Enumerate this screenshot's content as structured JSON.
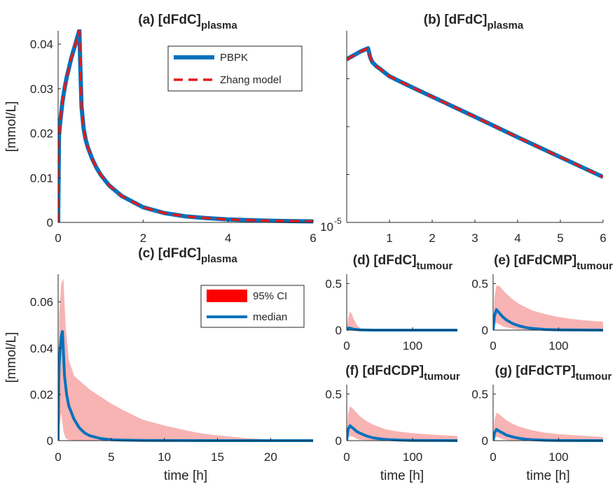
{
  "colors": {
    "pbpk": "#0072BD",
    "zhang": "#E31A1C",
    "ci_band": "#F8B3B3",
    "ci_legend": "#FF0000",
    "median": "#0072BD",
    "axes": "#262626"
  },
  "chart_data": [
    {
      "id": "a",
      "type": "line",
      "title": "(a) [dFdC]",
      "title_sub": "plasma",
      "ylabel": "[mmol/L]",
      "xlabel": "",
      "xlim": [
        0,
        6
      ],
      "ylim": [
        0,
        0.043
      ],
      "xticks": [
        0,
        2,
        4,
        6
      ],
      "yticks": [
        0,
        0.01,
        0.02,
        0.03,
        0.04
      ],
      "ytick_labels": [
        "0",
        "0.01",
        "0.02",
        "0.03",
        "0.04"
      ],
      "legend": {
        "position": "top-right",
        "entries": [
          "PBPK",
          "Zhang model"
        ]
      },
      "series": [
        {
          "name": "PBPK",
          "style": "solid",
          "x": [
            0,
            0.02,
            0.05,
            0.1,
            0.15,
            0.2,
            0.25,
            0.3,
            0.35,
            0.4,
            0.45,
            0.5,
            0.52,
            0.55,
            0.6,
            0.65,
            0.7,
            0.8,
            0.9,
            1.0,
            1.2,
            1.5,
            2.0,
            2.5,
            3.0,
            3.5,
            4.0,
            4.5,
            5.0,
            5.5,
            6.0
          ],
          "y": [
            0,
            0.0195,
            0.0225,
            0.027,
            0.03,
            0.0325,
            0.0345,
            0.0365,
            0.0382,
            0.0398,
            0.0415,
            0.0431,
            0.036,
            0.026,
            0.021,
            0.0185,
            0.0168,
            0.0143,
            0.0123,
            0.0107,
            0.0083,
            0.0059,
            0.0034,
            0.0021,
            0.00135,
            0.00095,
            0.00068,
            0.0005,
            0.00038,
            0.0003,
            0.00024
          ]
        },
        {
          "name": "Zhang model",
          "style": "dashed",
          "x": [
            0,
            0.02,
            0.05,
            0.1,
            0.15,
            0.2,
            0.25,
            0.3,
            0.35,
            0.4,
            0.45,
            0.5,
            0.52,
            0.55,
            0.6,
            0.65,
            0.7,
            0.8,
            0.9,
            1.0,
            1.2,
            1.5,
            2.0,
            2.5,
            3.0,
            3.5,
            4.0,
            4.5,
            5.0,
            5.5,
            6.0
          ],
          "y": [
            0,
            0.019,
            0.0225,
            0.027,
            0.03,
            0.0325,
            0.0345,
            0.0365,
            0.0382,
            0.0398,
            0.0415,
            0.043,
            0.036,
            0.026,
            0.021,
            0.0185,
            0.0168,
            0.0143,
            0.0123,
            0.0107,
            0.0083,
            0.0059,
            0.0034,
            0.0021,
            0.00135,
            0.00095,
            0.00068,
            0.0005,
            0.00038,
            0.0003,
            0.00024
          ]
        }
      ]
    },
    {
      "id": "b",
      "type": "line",
      "title": "(b) [dFdC]",
      "title_sub": "plasma",
      "yscale": "log",
      "xlim": [
        0,
        6
      ],
      "ylim": [
        1e-05,
        0.1
      ],
      "xticks": [
        1,
        2,
        3,
        4,
        5,
        6
      ],
      "ytick_labels": [
        "10"
      ],
      "ytick_exp": "-5",
      "series": [
        {
          "name": "PBPK",
          "style": "solid",
          "x": [
            0,
            0.1,
            0.2,
            0.3,
            0.4,
            0.5,
            0.52,
            0.55,
            0.6,
            0.7,
            0.8,
            1.0,
            1.5,
            2.0,
            3.0,
            4.0,
            5.0,
            6.0
          ],
          "y": [
            0.0255,
            0.0285,
            0.032,
            0.036,
            0.0395,
            0.0431,
            0.036,
            0.028,
            0.022,
            0.018,
            0.0155,
            0.0112,
            0.0068,
            0.0042,
            0.0016,
            0.0006,
            0.00023,
            8.9e-05
          ]
        },
        {
          "name": "Zhang model",
          "style": "dashed",
          "x": [
            0,
            0.1,
            0.2,
            0.3,
            0.4,
            0.5,
            0.52,
            0.55,
            0.6,
            0.7,
            0.8,
            1.0,
            1.5,
            2.0,
            3.0,
            4.0,
            5.0,
            6.0
          ],
          "y": [
            0.0245,
            0.0285,
            0.032,
            0.036,
            0.0395,
            0.043,
            0.036,
            0.028,
            0.022,
            0.018,
            0.0155,
            0.0112,
            0.0068,
            0.0042,
            0.0016,
            0.0006,
            0.00023,
            8.9e-05
          ]
        }
      ]
    },
    {
      "id": "c",
      "type": "area",
      "title": "(c) [dFdC]",
      "title_sub": "plasma",
      "ylabel": "[mmol/L]",
      "xlabel": "time [h]",
      "xlim": [
        0,
        24
      ],
      "ylim": [
        0,
        0.072
      ],
      "xticks": [
        0,
        5,
        10,
        15,
        20
      ],
      "yticks": [
        0,
        0.02,
        0.04,
        0.06
      ],
      "ytick_labels": [
        "0",
        "0.02",
        "0.04",
        "0.06"
      ],
      "legend": {
        "position": "top-right",
        "entries": [
          "95% CI",
          "median"
        ]
      },
      "series": [
        {
          "name": "95% CI",
          "x": [
            0,
            0.1,
            0.3,
            0.5,
            0.7,
            1.0,
            1.5,
            2.0,
            3.0,
            4.0,
            5.0,
            6.0,
            7.0,
            8.0,
            9.0,
            10.0,
            11.0,
            12.0,
            13.0,
            14.0,
            16.0,
            18.0,
            20.0,
            22.0,
            24.0
          ],
          "upper": [
            0.02,
            0.055,
            0.068,
            0.07,
            0.05,
            0.035,
            0.028,
            0.026,
            0.022,
            0.019,
            0.016,
            0.0135,
            0.0112,
            0.009,
            0.0078,
            0.0065,
            0.0055,
            0.0045,
            0.0035,
            0.0028,
            0.0018,
            0.001,
            0.0005,
            0.0002,
            0.0001
          ],
          "lower": [
            0,
            0.005,
            0.012,
            0.004,
            0.001,
            0.0003,
            0.0001,
            0,
            0,
            0,
            0,
            0,
            0,
            0,
            0,
            0,
            0,
            0,
            0,
            0,
            0,
            0,
            0,
            0,
            0
          ]
        },
        {
          "name": "median",
          "x": [
            0,
            0.05,
            0.1,
            0.2,
            0.3,
            0.4,
            0.5,
            0.6,
            0.8,
            1.0,
            1.5,
            2.0,
            2.5,
            3.0,
            4.0,
            5.0,
            6.0,
            8.0,
            10.0,
            15.0,
            20.0,
            24.0
          ],
          "y": [
            0,
            0.025,
            0.033,
            0.04,
            0.045,
            0.0472,
            0.038,
            0.028,
            0.02,
            0.015,
            0.0092,
            0.0055,
            0.0033,
            0.0021,
            0.0009,
            0.0004,
            0.0002,
            0.0001,
            4e-05,
            0,
            0,
            0
          ]
        }
      ]
    },
    {
      "id": "d",
      "type": "area",
      "title": "(d) [dFdC]",
      "title_sub": "tumour",
      "xlabel": "",
      "xlim": [
        0,
        168
      ],
      "ylim": [
        0,
        0.6
      ],
      "xticks": [
        0,
        100
      ],
      "yticks": [
        0,
        0.5
      ],
      "ytick_labels": [
        "0",
        "0.5"
      ],
      "series": [
        {
          "name": "95% CI",
          "x": [
            0,
            2,
            5,
            8,
            10,
            12,
            15,
            18,
            22,
            26,
            30,
            168
          ],
          "upper": [
            0,
            0.12,
            0.2,
            0.17,
            0.13,
            0.1,
            0.06,
            0.035,
            0.015,
            0.005,
            0,
            0
          ],
          "lower": [
            0,
            0,
            0,
            0,
            0,
            0,
            0,
            0,
            0,
            0,
            0,
            0
          ]
        },
        {
          "name": "median",
          "x": [
            0,
            2,
            5,
            10,
            20,
            40,
            168
          ],
          "y": [
            0,
            0.02,
            0.02,
            0.01,
            0.003,
            0,
            0
          ]
        }
      ]
    },
    {
      "id": "e",
      "type": "area",
      "title": "(e) [dFdCMP]",
      "title_sub": "tumour",
      "xlabel": "",
      "xlim": [
        0,
        168
      ],
      "ylim": [
        0,
        0.6
      ],
      "xticks": [
        0,
        100
      ],
      "yticks": [
        0,
        0.5
      ],
      "ytick_labels": [
        "0",
        "0.5"
      ],
      "series": [
        {
          "name": "95% CI",
          "x": [
            0,
            2,
            5,
            10,
            15,
            20,
            30,
            40,
            60,
            80,
            100,
            120,
            140,
            168
          ],
          "upper": [
            0,
            0.35,
            0.48,
            0.47,
            0.43,
            0.39,
            0.33,
            0.28,
            0.21,
            0.17,
            0.14,
            0.12,
            0.105,
            0.09
          ],
          "lower": [
            0,
            0.05,
            0.08,
            0.06,
            0.04,
            0.03,
            0.015,
            0.008,
            0.003,
            0.001,
            0,
            0,
            0,
            0
          ]
        },
        {
          "name": "median",
          "x": [
            0,
            2,
            5,
            10,
            15,
            20,
            30,
            40,
            50,
            60,
            80,
            100,
            168
          ],
          "y": [
            0,
            0.15,
            0.22,
            0.18,
            0.14,
            0.11,
            0.07,
            0.045,
            0.028,
            0.018,
            0.007,
            0.003,
            0
          ]
        }
      ]
    },
    {
      "id": "f",
      "type": "area",
      "title": "(f) [dFdCDP]",
      "title_sub": "tumour",
      "xlabel": "time [h]",
      "xlim": [
        0,
        168
      ],
      "ylim": [
        0,
        0.6
      ],
      "xticks": [
        0,
        100
      ],
      "yticks": [
        0,
        0.5
      ],
      "ytick_labels": [
        "0",
        "0.5"
      ],
      "series": [
        {
          "name": "95% CI",
          "x": [
            0,
            2,
            5,
            10,
            15,
            20,
            30,
            40,
            60,
            80,
            100,
            120,
            140,
            168
          ],
          "upper": [
            0,
            0.28,
            0.37,
            0.34,
            0.3,
            0.26,
            0.21,
            0.17,
            0.12,
            0.095,
            0.08,
            0.07,
            0.06,
            0.05
          ],
          "lower": [
            0,
            0.03,
            0.05,
            0.04,
            0.02,
            0.01,
            0.005,
            0.002,
            0,
            0,
            0,
            0,
            0,
            0
          ]
        },
        {
          "name": "median",
          "x": [
            0,
            2,
            5,
            10,
            15,
            20,
            30,
            40,
            50,
            60,
            80,
            100,
            168
          ],
          "y": [
            0,
            0.12,
            0.16,
            0.13,
            0.1,
            0.08,
            0.05,
            0.03,
            0.02,
            0.012,
            0.005,
            0.002,
            0
          ]
        }
      ]
    },
    {
      "id": "g",
      "type": "area",
      "title": "(g) [dFdCTP]",
      "title_sub": "tumour",
      "xlabel": "time [h]",
      "xlim": [
        0,
        168
      ],
      "ylim": [
        0,
        0.6
      ],
      "xticks": [
        0,
        100
      ],
      "yticks": [
        0,
        0.5
      ],
      "ytick_labels": [
        "0",
        "0.5"
      ],
      "series": [
        {
          "name": "95% CI",
          "x": [
            0,
            2,
            5,
            10,
            15,
            20,
            30,
            40,
            60,
            80,
            100,
            120,
            140,
            168
          ],
          "upper": [
            0,
            0.22,
            0.3,
            0.28,
            0.25,
            0.22,
            0.18,
            0.15,
            0.11,
            0.085,
            0.07,
            0.06,
            0.05,
            0.04
          ],
          "lower": [
            0,
            0.02,
            0.04,
            0.03,
            0.015,
            0.008,
            0.003,
            0.001,
            0,
            0,
            0,
            0,
            0,
            0
          ]
        },
        {
          "name": "median",
          "x": [
            0,
            2,
            5,
            10,
            15,
            20,
            30,
            40,
            50,
            60,
            80,
            100,
            168
          ],
          "y": [
            0,
            0.08,
            0.12,
            0.1,
            0.08,
            0.06,
            0.04,
            0.025,
            0.015,
            0.01,
            0.004,
            0.001,
            0
          ]
        }
      ]
    }
  ]
}
